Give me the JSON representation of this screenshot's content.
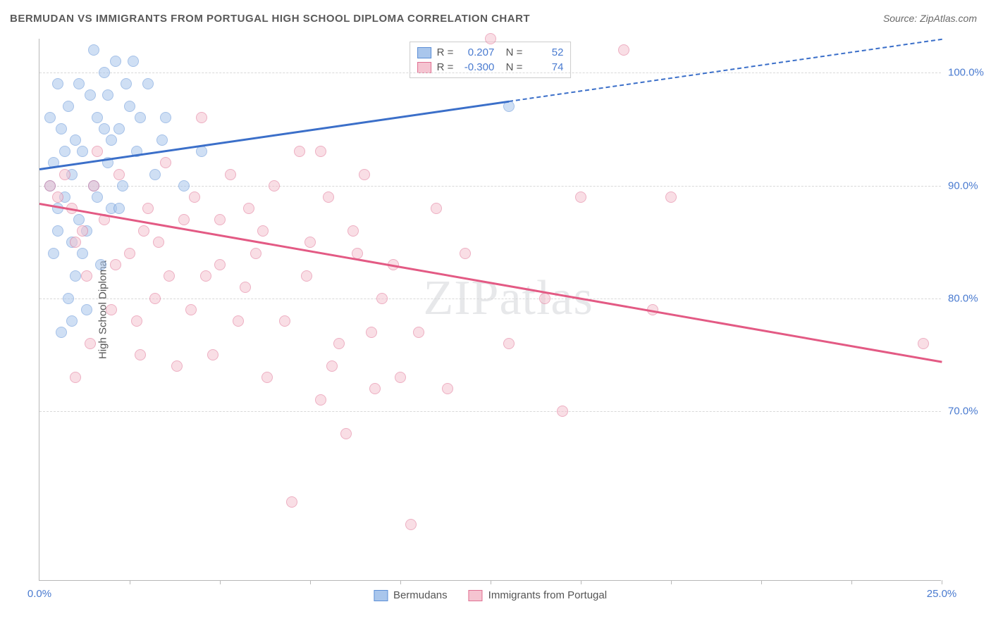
{
  "title": "BERMUDAN VS IMMIGRANTS FROM PORTUGAL HIGH SCHOOL DIPLOMA CORRELATION CHART",
  "source": "Source: ZipAtlas.com",
  "ylabel": "High School Diploma",
  "watermark": "ZIPatlas",
  "chart": {
    "type": "scatter",
    "xlim": [
      0,
      25
    ],
    "ylim": [
      55,
      103
    ],
    "xtick_labels": {
      "0": "0.0%",
      "25": "25.0%"
    },
    "xtick_marks": [
      2.5,
      5,
      7.5,
      10,
      12.5,
      15,
      17.5,
      20,
      22.5,
      25
    ],
    "yticks": [
      70,
      80,
      90,
      100
    ],
    "ytick_labels": {
      "70": "70.0%",
      "80": "80.0%",
      "90": "90.0%",
      "100": "100.0%"
    },
    "background_color": "#ffffff",
    "grid_color": "#d8d8d8",
    "marker_radius": 8,
    "marker_opacity": 0.55,
    "colors": {
      "blue_fill": "#a9c6ec",
      "blue_stroke": "#5c8fd6",
      "pink_fill": "#f5c4d1",
      "pink_stroke": "#e06f92",
      "blue_line": "#3b6fc9",
      "pink_line": "#e35a84"
    },
    "series": [
      {
        "name": "Bermudans",
        "color_key": "blue",
        "R": "0.207",
        "N": "52",
        "points": [
          [
            0.3,
            90
          ],
          [
            0.4,
            92
          ],
          [
            0.5,
            88
          ],
          [
            0.6,
            95
          ],
          [
            0.7,
            89
          ],
          [
            0.8,
            97
          ],
          [
            0.9,
            91
          ],
          [
            0.9,
            85
          ],
          [
            1.0,
            94
          ],
          [
            1.1,
            99
          ],
          [
            1.2,
            93
          ],
          [
            1.3,
            86
          ],
          [
            1.4,
            98
          ],
          [
            1.5,
            90
          ],
          [
            1.5,
            102
          ],
          [
            1.6,
            96
          ],
          [
            1.7,
            83
          ],
          [
            1.8,
            100
          ],
          [
            1.9,
            92
          ],
          [
            2.0,
            88
          ],
          [
            2.1,
            101
          ],
          [
            2.2,
            95
          ],
          [
            2.3,
            90
          ],
          [
            2.5,
            97
          ],
          [
            2.7,
            93
          ],
          [
            3.0,
            99
          ],
          [
            3.2,
            91
          ],
          [
            3.5,
            96
          ],
          [
            0.6,
            77
          ],
          [
            0.8,
            80
          ],
          [
            1.0,
            82
          ],
          [
            1.3,
            79
          ],
          [
            0.4,
            84
          ],
          [
            0.5,
            86
          ],
          [
            1.1,
            87
          ],
          [
            1.6,
            89
          ],
          [
            2.0,
            94
          ],
          [
            2.4,
            99
          ],
          [
            2.8,
            96
          ],
          [
            4.0,
            90
          ],
          [
            4.5,
            93
          ],
          [
            1.9,
            98
          ],
          [
            2.2,
            88
          ],
          [
            0.7,
            93
          ],
          [
            1.8,
            95
          ],
          [
            2.6,
            101
          ],
          [
            3.4,
            94
          ],
          [
            0.3,
            96
          ],
          [
            0.5,
            99
          ],
          [
            13.0,
            97
          ],
          [
            1.2,
            84
          ],
          [
            0.9,
            78
          ]
        ],
        "trendline": {
          "x1": 0,
          "y1": 91.5,
          "x2": 13.0,
          "y2": 97.5,
          "solid": true
        },
        "trendline_ext": {
          "x1": 13.0,
          "y1": 97.5,
          "x2": 25,
          "y2": 103
        }
      },
      {
        "name": "Immigrants from Portugal",
        "color_key": "pink",
        "R": "-0.300",
        "N": "74",
        "points": [
          [
            0.3,
            90
          ],
          [
            0.5,
            89
          ],
          [
            0.7,
            91
          ],
          [
            0.9,
            88
          ],
          [
            1.0,
            85
          ],
          [
            1.2,
            86
          ],
          [
            1.5,
            90
          ],
          [
            1.8,
            87
          ],
          [
            2.0,
            79
          ],
          [
            2.2,
            91
          ],
          [
            2.5,
            84
          ],
          [
            2.8,
            75
          ],
          [
            3.0,
            88
          ],
          [
            3.2,
            80
          ],
          [
            3.5,
            92
          ],
          [
            3.8,
            74
          ],
          [
            4.0,
            87
          ],
          [
            4.3,
            89
          ],
          [
            4.5,
            96
          ],
          [
            4.8,
            75
          ],
          [
            5.0,
            83
          ],
          [
            5.3,
            91
          ],
          [
            5.5,
            78
          ],
          [
            5.8,
            88
          ],
          [
            6.0,
            84
          ],
          [
            6.3,
            73
          ],
          [
            6.5,
            90
          ],
          [
            7.0,
            62
          ],
          [
            7.2,
            93
          ],
          [
            7.5,
            85
          ],
          [
            7.8,
            71
          ],
          [
            8.0,
            89
          ],
          [
            8.3,
            76
          ],
          [
            8.5,
            68
          ],
          [
            8.8,
            84
          ],
          [
            9.0,
            91
          ],
          [
            9.3,
            72
          ],
          [
            9.5,
            80
          ],
          [
            10.0,
            73
          ],
          [
            10.3,
            60
          ],
          [
            10.5,
            77
          ],
          [
            11.0,
            88
          ],
          [
            11.3,
            72
          ],
          [
            11.8,
            84
          ],
          [
            12.5,
            103
          ],
          [
            13.0,
            76
          ],
          [
            14.0,
            80
          ],
          [
            14.5,
            70
          ],
          [
            15.0,
            89
          ],
          [
            16.2,
            102
          ],
          [
            17.0,
            79
          ],
          [
            17.5,
            89
          ],
          [
            24.5,
            76
          ],
          [
            1.3,
            82
          ],
          [
            1.6,
            93
          ],
          [
            2.9,
            86
          ],
          [
            3.6,
            82
          ],
          [
            4.2,
            79
          ],
          [
            5.0,
            87
          ],
          [
            5.7,
            81
          ],
          [
            6.2,
            86
          ],
          [
            6.8,
            78
          ],
          [
            7.4,
            82
          ],
          [
            8.1,
            74
          ],
          [
            8.7,
            86
          ],
          [
            9.2,
            77
          ],
          [
            9.8,
            83
          ],
          [
            1.0,
            73
          ],
          [
            1.4,
            76
          ],
          [
            2.1,
            83
          ],
          [
            2.7,
            78
          ],
          [
            3.3,
            85
          ],
          [
            4.6,
            82
          ],
          [
            7.8,
            93
          ]
        ],
        "trendline": {
          "x1": 0,
          "y1": 88.5,
          "x2": 25,
          "y2": 74.5,
          "solid": true
        }
      }
    ],
    "legend": {
      "stats_rows": [
        {
          "color_key": "blue",
          "R": "0.207",
          "N": "52"
        },
        {
          "color_key": "pink",
          "R": "-0.300",
          "N": "74"
        }
      ],
      "bottom_items": [
        {
          "color_key": "blue",
          "label": "Bermudans"
        },
        {
          "color_key": "pink",
          "label": "Immigrants from Portugal"
        }
      ]
    }
  }
}
